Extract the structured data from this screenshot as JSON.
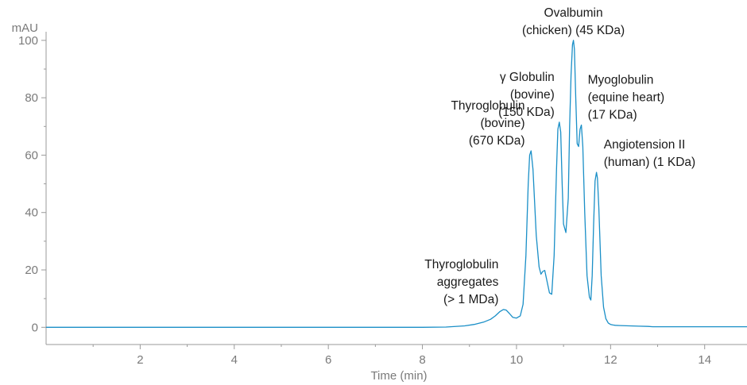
{
  "chart_data": {
    "type": "line",
    "xlabel": "Time (min)",
    "ylabel": "mAU",
    "xlim": [
      0,
      14.9
    ],
    "ylim": [
      -6,
      103
    ],
    "x_ticks": [
      2,
      4,
      6,
      8,
      10,
      12,
      14
    ],
    "y_ticks": [
      0,
      20,
      40,
      60,
      80,
      100
    ],
    "grid": false,
    "series": [
      {
        "color": "#1a8fc7",
        "x": [
          0,
          1,
          2,
          3,
          4,
          5,
          6,
          7,
          8,
          8.5,
          8.9,
          9.1,
          9.3,
          9.45,
          9.55,
          9.65,
          9.72,
          9.78,
          9.85,
          9.92,
          10.0,
          10.08,
          10.14,
          10.2,
          10.25,
          10.28,
          10.31,
          10.35,
          10.42,
          10.48,
          10.52,
          10.56,
          10.6,
          10.65,
          10.7,
          10.75,
          10.8,
          10.85,
          10.88,
          10.91,
          10.94,
          10.97,
          11.0,
          11.05,
          11.1,
          11.13,
          11.16,
          11.19,
          11.21,
          11.23,
          11.26,
          11.29,
          11.32,
          11.35,
          11.38,
          11.41,
          11.45,
          11.5,
          11.55,
          11.58,
          11.61,
          11.64,
          11.67,
          11.7,
          11.72,
          11.75,
          11.8,
          11.85,
          11.9,
          11.95,
          12.0,
          12.05,
          12.1,
          12.2,
          12.4,
          12.6,
          12.8,
          12.9,
          13.2,
          13.6,
          14.0,
          14.5,
          14.9
        ],
        "y": [
          0,
          0,
          0,
          0,
          0,
          0,
          0,
          0,
          0,
          0.1,
          0.5,
          1.0,
          1.8,
          2.8,
          4.0,
          5.5,
          6.2,
          6.0,
          4.8,
          3.5,
          3.2,
          4.0,
          8.0,
          25.0,
          50.0,
          60.0,
          61.5,
          55.0,
          32.0,
          21.0,
          18.5,
          19.5,
          19.8,
          16.0,
          12.0,
          11.5,
          25.0,
          55.0,
          69.0,
          71.5,
          68.0,
          50.0,
          36.0,
          33.0,
          45.0,
          70.0,
          88.0,
          98.5,
          100.0,
          97.0,
          80.0,
          64.0,
          63.0,
          69.0,
          70.5,
          63.0,
          40.0,
          18.0,
          10.5,
          9.5,
          18.0,
          36.0,
          51.0,
          54.0,
          52.0,
          42.0,
          18.0,
          7.0,
          3.0,
          1.5,
          1.0,
          0.8,
          0.7,
          0.6,
          0.5,
          0.4,
          0.3,
          0.2,
          0.2,
          0.2,
          0.2,
          0.2,
          0.2
        ]
      }
    ],
    "annotations": [
      {
        "lines": [
          "Thyroglobulin",
          "aggregates",
          "(> 1 MDa)"
        ],
        "x": 9.72,
        "y": 6.2,
        "align": "right"
      },
      {
        "lines": [
          "Thyroglobulin",
          "(bovine)",
          "(670 KDa)"
        ],
        "x": 10.28,
        "y": 61.5,
        "align": "right"
      },
      {
        "lines": [
          "γ Globulin",
          "(bovine)",
          "(150 KDa)"
        ],
        "x": 10.91,
        "y": 71.5,
        "align": "right"
      },
      {
        "lines": [
          "Ovalbumin",
          "(chicken) (45 KDa)"
        ],
        "x": 11.21,
        "y": 100.0,
        "align": "center"
      },
      {
        "lines": [
          "Myoglobulin",
          "(equine heart)",
          "(17 KDa)"
        ],
        "x": 11.38,
        "y": 70.5,
        "align": "left"
      },
      {
        "lines": [
          "Angiotension II",
          "(human) (1 KDa)"
        ],
        "x": 11.72,
        "y": 54.0,
        "align": "left"
      }
    ]
  }
}
